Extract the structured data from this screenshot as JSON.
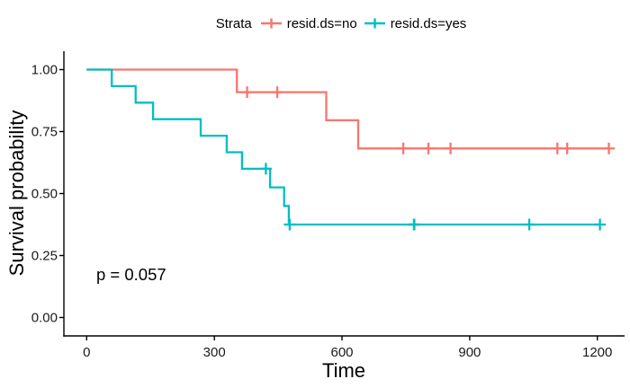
{
  "legend": {
    "title": "Strata",
    "items": [
      {
        "label": "resid.ds=no",
        "color": "#F8766D"
      },
      {
        "label": "resid.ds=yes",
        "color": "#00BFC4"
      }
    ]
  },
  "annotation": {
    "p_value": "p = 0.057"
  },
  "chart_data": {
    "type": "line",
    "subtype": "kaplan_meier_step",
    "title": "",
    "xlabel": "Time",
    "ylabel": "Survival probability",
    "x_ticks": [
      0,
      300,
      600,
      900,
      1200
    ],
    "y_ticks": [
      {
        "label": "0.00",
        "value": 0.0
      },
      {
        "label": "0.25",
        "value": 0.25
      },
      {
        "label": "0.50",
        "value": 0.5
      },
      {
        "label": "0.75",
        "value": 0.75
      },
      {
        "label": "1.00",
        "value": 1.0
      }
    ],
    "xlim": [
      -53.5,
      1264
    ],
    "ylim": [
      -0.0743,
      1.0743
    ],
    "grid": false,
    "legend_position": "top",
    "axis_color": "#000000",
    "censor_shape": "plus",
    "series": [
      {
        "name": "resid.ds=no",
        "color": "#F8766D",
        "steps": [
          {
            "t": 0,
            "s": 1.0
          },
          {
            "t": 353,
            "s": 0.9091
          },
          {
            "t": 563,
            "s": 0.7955
          },
          {
            "t": 638,
            "s": 0.6818
          }
        ],
        "end_time": 1227,
        "censor_points": [
          {
            "t": 377,
            "s": 0.9091
          },
          {
            "t": 448,
            "s": 0.9091
          },
          {
            "t": 744,
            "s": 0.6818
          },
          {
            "t": 803,
            "s": 0.6818
          },
          {
            "t": 855,
            "s": 0.6818
          },
          {
            "t": 1106,
            "s": 0.6818
          },
          {
            "t": 1129,
            "s": 0.6818
          },
          {
            "t": 1227,
            "s": 0.6818
          }
        ]
      },
      {
        "name": "resid.ds=yes",
        "color": "#00BFC4",
        "steps": [
          {
            "t": 0,
            "s": 1.0
          },
          {
            "t": 59,
            "s": 0.9333
          },
          {
            "t": 115,
            "s": 0.8667
          },
          {
            "t": 156,
            "s": 0.8
          },
          {
            "t": 268,
            "s": 0.7333
          },
          {
            "t": 329,
            "s": 0.6667
          },
          {
            "t": 365,
            "s": 0.6
          },
          {
            "t": 431,
            "s": 0.525
          },
          {
            "t": 464,
            "s": 0.45
          },
          {
            "t": 475,
            "s": 0.375
          }
        ],
        "end_time": 1206,
        "censor_points": [
          {
            "t": 421,
            "s": 0.6
          },
          {
            "t": 477,
            "s": 0.375
          },
          {
            "t": 769,
            "s": 0.375
          },
          {
            "t": 770,
            "s": 0.375
          },
          {
            "t": 1040,
            "s": 0.375
          },
          {
            "t": 1206,
            "s": 0.375
          }
        ]
      }
    ]
  }
}
